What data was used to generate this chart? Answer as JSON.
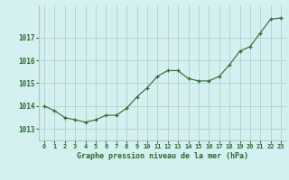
{
  "x": [
    0,
    1,
    2,
    3,
    4,
    5,
    6,
    7,
    8,
    9,
    10,
    11,
    12,
    13,
    14,
    15,
    16,
    17,
    18,
    19,
    20,
    21,
    22,
    23
  ],
  "y": [
    1014.0,
    1013.8,
    1013.5,
    1013.4,
    1013.3,
    1013.4,
    1013.6,
    1013.6,
    1013.9,
    1014.4,
    1014.8,
    1015.3,
    1015.55,
    1015.55,
    1015.2,
    1015.1,
    1015.1,
    1015.3,
    1015.8,
    1016.4,
    1016.6,
    1017.2,
    1017.8,
    1017.85
  ],
  "line_color": "#2d6a2d",
  "marker_color": "#2d6a2d",
  "bg_color": "#d4f0f0",
  "plot_bg_color": "#d4f0f0",
  "grid_color": "#b0c8c8",
  "xlabel": "Graphe pression niveau de la mer (hPa)",
  "xlabel_color": "#2d6a2d",
  "tick_color": "#2d6a2d",
  "ylim": [
    1012.5,
    1018.4
  ],
  "yticks": [
    1013,
    1014,
    1015,
    1016,
    1017
  ],
  "xticks": [
    0,
    1,
    2,
    3,
    4,
    5,
    6,
    7,
    8,
    9,
    10,
    11,
    12,
    13,
    14,
    15,
    16,
    17,
    18,
    19,
    20,
    21,
    22,
    23
  ],
  "xtick_labels": [
    "0",
    "1",
    "2",
    "3",
    "4",
    "5",
    "6",
    "7",
    "8",
    "9",
    "10",
    "11",
    "12",
    "13",
    "14",
    "15",
    "16",
    "17",
    "18",
    "19",
    "20",
    "21",
    "22",
    "23"
  ]
}
